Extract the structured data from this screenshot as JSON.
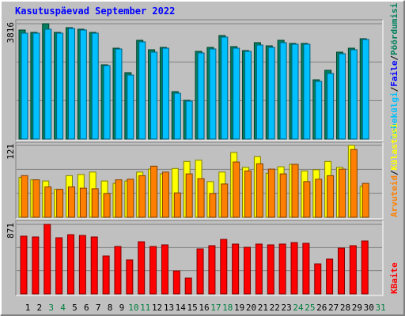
{
  "chart_data": [
    {
      "type": "bar",
      "title": "Kasutuspäevad September 2022",
      "ylim": [
        0,
        3816
      ],
      "yticks": [
        3816
      ],
      "series": [
        {
          "name": "Pöördumisi",
          "color": "#00805c",
          "values": [
            3607,
            3529,
            3816,
            3529,
            3686,
            3634,
            3529,
            2457,
            3006,
            2196,
            3267,
            2954,
            3032,
            1568,
            1281,
            2901,
            3032,
            3424,
            3058,
            2927,
            3189,
            3084,
            3267,
            3163,
            3163,
            1960,
            2274,
            2875,
            3006,
            3320,
            null
          ]
        },
        {
          "name": "Lehekülgi",
          "color": "#00c0ff",
          "values": [
            3503,
            3503,
            3633,
            3503,
            3660,
            3607,
            3503,
            2431,
            2980,
            2117,
            3215,
            2875,
            3006,
            1516,
            1255,
            2849,
            2980,
            3372,
            3006,
            2901,
            3110,
            3032,
            3189,
            3137,
            3137,
            1908,
            2170,
            2823,
            2954,
            3294,
            null
          ]
        }
      ],
      "extra_legend": {
        "name": "Faile",
        "color": "#0000ff"
      },
      "legend_separator": "/"
    },
    {
      "type": "bar",
      "ylim": [
        0,
        121
      ],
      "yticks": [
        121
      ],
      "series": [
        {
          "name": "Külastusi",
          "color": "#ffff00",
          "values": [
            67,
            63,
            61,
            47,
            70,
            72,
            76,
            61,
            57,
            61,
            76,
            81,
            73,
            82,
            94,
            96,
            60,
            76,
            109,
            84,
            102,
            74,
            85,
            89,
            78,
            80,
            94,
            84,
            121,
            52,
            null
          ]
        },
        {
          "name": "Arvuteid",
          "color": "#ff8000",
          "values": [
            70,
            63,
            51,
            47,
            51,
            49,
            48,
            40,
            63,
            64,
            70,
            86,
            76,
            41,
            73,
            65,
            40,
            56,
            93,
            78,
            90,
            81,
            73,
            89,
            60,
            64,
            70,
            81,
            114,
            57,
            null
          ]
        }
      ],
      "legend_separator": "/"
    },
    {
      "type": "bar",
      "ylim": [
        0,
        871
      ],
      "yticks": [
        871
      ],
      "categories": [
        "1",
        "2",
        "3",
        "4",
        "5",
        "6",
        "7",
        "8",
        "9",
        "10",
        "11",
        "12",
        "13",
        "14",
        "15",
        "16",
        "17",
        "18",
        "19",
        "20",
        "21",
        "22",
        "23",
        "24",
        "25",
        "26",
        "27",
        "28",
        "29",
        "30",
        "31"
      ],
      "category_colors": [
        "#000000",
        "#000000",
        "#008040",
        "#008040",
        "#000000",
        "#000000",
        "#000000",
        "#000000",
        "#000000",
        "#008040",
        "#008040",
        "#000000",
        "#000000",
        "#000000",
        "#000000",
        "#000000",
        "#008040",
        "#008040",
        "#000000",
        "#000000",
        "#000000",
        "#000000",
        "#000000",
        "#008040",
        "#008040",
        "#000000",
        "#000000",
        "#000000",
        "#000000",
        "#000000",
        "#008040"
      ],
      "series": [
        {
          "name": "KBaite",
          "color": "#ff0000",
          "values": [
            723,
            713,
            871,
            703,
            742,
            732,
            713,
            475,
            594,
            426,
            653,
            594,
            614,
            287,
            198,
            564,
            604,
            683,
            624,
            584,
            624,
            614,
            624,
            643,
            634,
            376,
            436,
            574,
            604,
            663,
            null
          ]
        }
      ]
    }
  ]
}
